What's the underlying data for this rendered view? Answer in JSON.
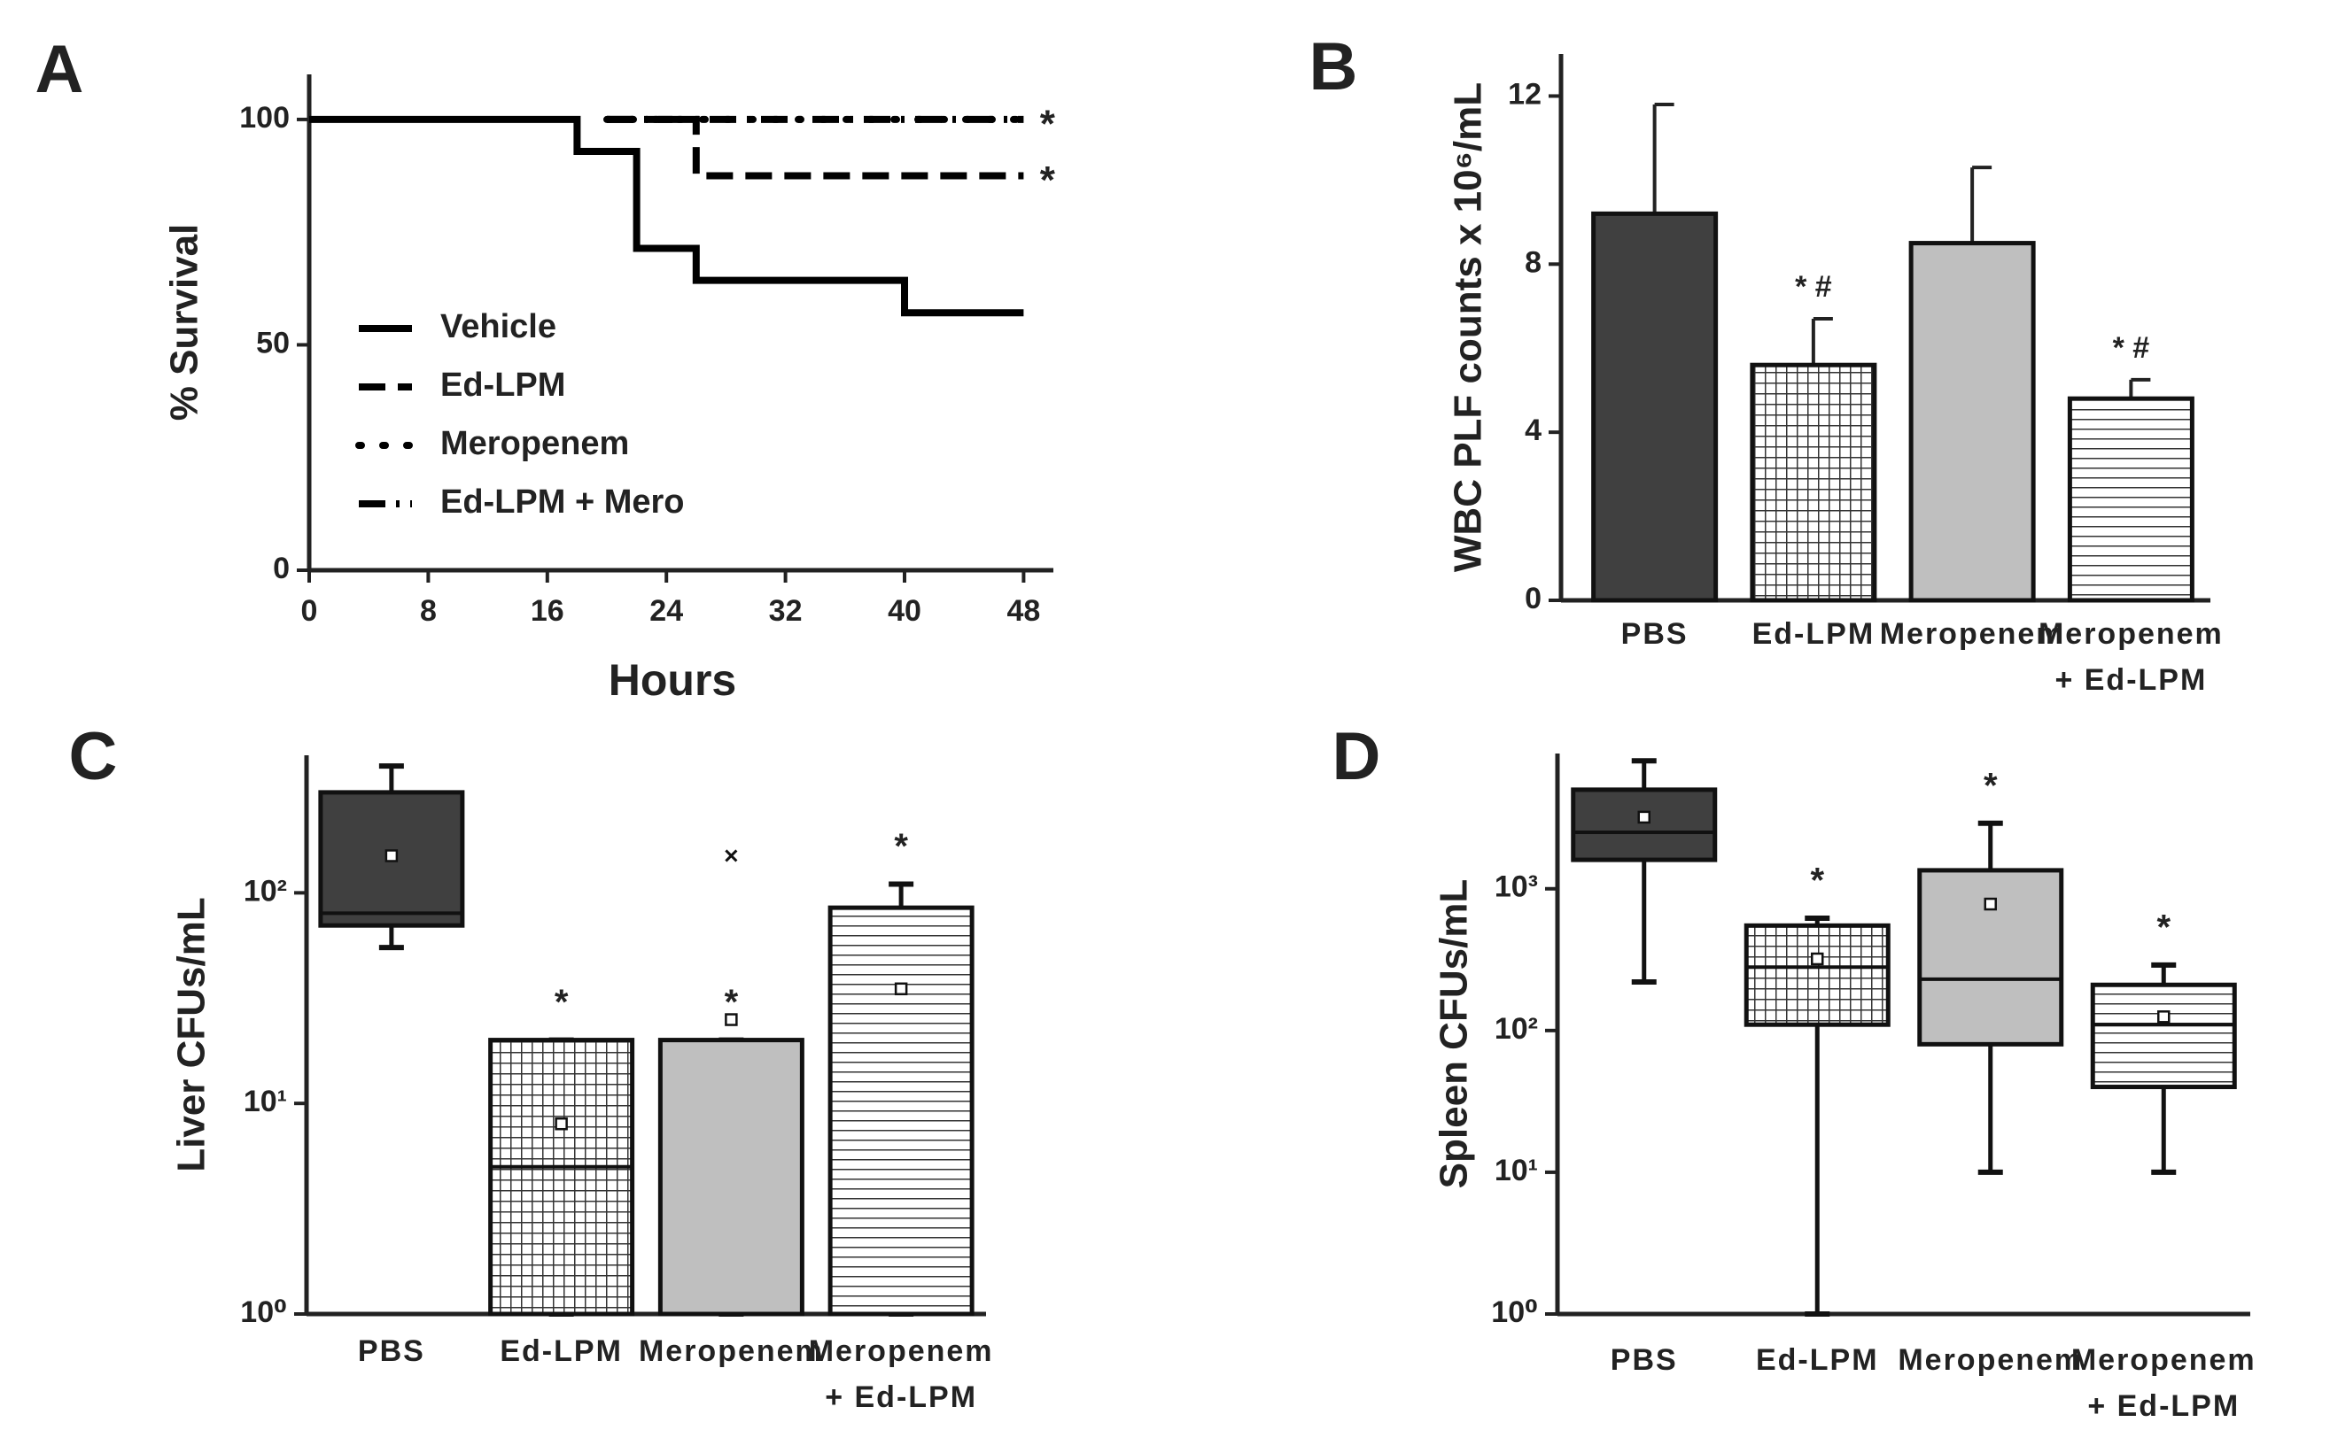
{
  "chart_data": [
    {
      "type": "line",
      "panel": "A",
      "xlabel": "Hours",
      "ylabel": "% Survival",
      "xlim": [
        0,
        50
      ],
      "xticks": [
        0,
        8,
        16,
        24,
        32,
        40,
        48
      ],
      "ylim": [
        0,
        110
      ],
      "yticks": [
        0,
        50,
        100
      ],
      "step": true,
      "series": [
        {
          "name": "Vehicle",
          "color": "#000000",
          "dash": "solid",
          "x": [
            0,
            18,
            22,
            26,
            40,
            48
          ],
          "values": [
            100,
            92.9,
            71.4,
            64.3,
            57.1,
            57.1
          ]
        },
        {
          "name": "Ed-LPM",
          "color": "#000000",
          "dash": "dashed",
          "x": [
            20,
            26,
            48
          ],
          "values": [
            100,
            87.5,
            87.5
          ]
        },
        {
          "name": "Meropenem",
          "color": "#000000",
          "dash": "dotted",
          "x": [
            20,
            48
          ],
          "values": [
            100,
            100
          ]
        },
        {
          "name": "Ed-LPM + Mero",
          "color": "#000000",
          "dash": "dashdot",
          "x": [
            20,
            48
          ],
          "values": [
            100,
            100
          ]
        }
      ],
      "annotations": [
        {
          "text": "*",
          "x": 49.6,
          "y": 100
        },
        {
          "text": "*",
          "x": 49.6,
          "y": 87.5
        }
      ]
    },
    {
      "type": "bar",
      "panel": "B",
      "ylabel": "WBC PLF counts x 10⁶/mL",
      "categories": [
        "PBS",
        "Ed-LPM",
        "Meropenem",
        "Meropenem\n+ Ed-LPM"
      ],
      "values": [
        9.2,
        5.6,
        8.5,
        4.8
      ],
      "errors": [
        2.6,
        1.1,
        1.8,
        0.45
      ],
      "colors": [
        "#404040",
        "#ffffff",
        "#bfbfbf",
        "#ffffff"
      ],
      "patterns": [
        null,
        "grid",
        null,
        "hlines"
      ],
      "value_annotations": [
        null,
        "* #",
        null,
        "* #"
      ],
      "ylim": [
        0,
        13
      ],
      "yticks": [
        0,
        4,
        8,
        12
      ]
    },
    {
      "type": "box",
      "panel": "C",
      "ylabel": "Liver CFUs/mL",
      "log": true,
      "categories": [
        "PBS",
        "Ed-LPM",
        "Meropenem",
        "Meropenem\n+ Ed-LPM"
      ],
      "colors": [
        "#404040",
        "#ffffff",
        "#bfbfbf",
        "#ffffff"
      ],
      "patterns": [
        null,
        "grid",
        null,
        "hlines"
      ],
      "boxes": [
        {
          "q1": 70,
          "median": 80,
          "q3": 300,
          "whislo": 55,
          "whishi": 400,
          "mean": 150,
          "fliers": []
        },
        {
          "q1": 1,
          "median": 5,
          "q3": 20,
          "whislo": 1,
          "whishi": 20,
          "mean": 8,
          "fliers": []
        },
        {
          "q1": 1,
          "median": 20,
          "q3": 20,
          "whislo": 1,
          "whishi": 20,
          "mean": 25,
          "fliers": [
            150
          ]
        },
        {
          "q1": 1,
          "median": 1,
          "q3": 85,
          "whislo": 1,
          "whishi": 110,
          "mean": 35,
          "fliers": []
        }
      ],
      "annotations": [
        null,
        "*",
        "*",
        "*"
      ],
      "ylim": [
        1,
        450
      ],
      "yticks": [
        {
          "value": 1,
          "label": "10⁰"
        },
        {
          "value": 10,
          "label": "10¹"
        },
        {
          "value": 100,
          "label": "10²"
        }
      ]
    },
    {
      "type": "box",
      "panel": "D",
      "ylabel": "Spleen CFUs/mL",
      "log": true,
      "categories": [
        "PBS",
        "Ed-LPM",
        "Meropenem",
        "Meropenem\n+ Ed-LPM"
      ],
      "colors": [
        "#404040",
        "#ffffff",
        "#bfbfbf",
        "#ffffff"
      ],
      "patterns": [
        null,
        "grid",
        null,
        "hlines"
      ],
      "boxes": [
        {
          "q1": 1600,
          "median": 2500,
          "q3": 5000,
          "whislo": 220,
          "whishi": 8000,
          "mean": 3200,
          "fliers": []
        },
        {
          "q1": 110,
          "median": 280,
          "q3": 550,
          "whislo": 1,
          "whishi": 620,
          "mean": 320,
          "fliers": []
        },
        {
          "q1": 80,
          "median": 230,
          "q3": 1350,
          "whislo": 10,
          "whishi": 2900,
          "mean": 780,
          "fliers": []
        },
        {
          "q1": 40,
          "median": 110,
          "q3": 210,
          "whislo": 10,
          "whishi": 290,
          "mean": 125,
          "fliers": []
        }
      ],
      "annotations": [
        null,
        "*",
        "*",
        "*"
      ],
      "ylim": [
        1,
        9000
      ],
      "yticks": [
        {
          "value": 1,
          "label": "10⁰"
        },
        {
          "value": 10,
          "label": "10¹"
        },
        {
          "value": 100,
          "label": "10²"
        },
        {
          "value": 1000,
          "label": "10³"
        }
      ]
    }
  ]
}
